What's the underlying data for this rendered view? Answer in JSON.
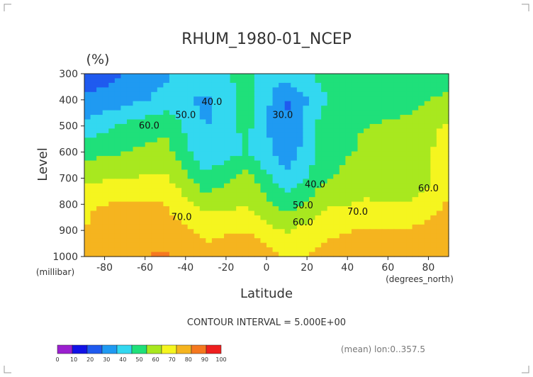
{
  "chart_data": {
    "type": "heatmap",
    "subtype": "filled-contour",
    "title": "RHUM_1980-01_NCEP",
    "unit_label": "(%)",
    "xlabel": "Latitude",
    "ylabel": "Level",
    "x_unit_label": "(degrees_north)",
    "y_unit_label": "(millibar)",
    "xlim": [
      -90,
      90
    ],
    "ylim": [
      1000,
      300
    ],
    "y_scale": "linear, inverted (pressure decreases upward)",
    "x_ticks": [
      -80,
      -60,
      -40,
      -20,
      0,
      20,
      40,
      60,
      80
    ],
    "y_ticks": [
      300,
      400,
      500,
      600,
      700,
      800,
      900,
      1000
    ],
    "contour_interval_text": "CONTOUR INTERVAL = 5.000E+00",
    "footer_note": "(mean) lon:0..357.5",
    "contour_labels": [
      {
        "text": "40.0",
        "lat": -27,
        "level": 420
      },
      {
        "text": "50.0",
        "lat": -40,
        "level": 470
      },
      {
        "text": "60.0",
        "lat": -58,
        "level": 510
      },
      {
        "text": "70.0",
        "lat": -42,
        "level": 860
      },
      {
        "text": "30.0",
        "lat": 8,
        "level": 470
      },
      {
        "text": "40.0",
        "lat": 24,
        "level": 735
      },
      {
        "text": "50.0",
        "lat": 18,
        "level": 815
      },
      {
        "text": "60.0",
        "lat": 18,
        "level": 880
      },
      {
        "text": "70.0",
        "lat": 45,
        "level": 840
      },
      {
        "text": "60.0",
        "lat": 80,
        "level": 750
      }
    ],
    "colorbar": {
      "ticks": [
        "0",
        "10",
        "20",
        "30",
        "40",
        "50",
        "60",
        "70",
        "80",
        "90",
        "100"
      ],
      "colors": [
        "#9b1fcf",
        "#1212e6",
        "#1f5aef",
        "#1f9af2",
        "#33d8f0",
        "#1fe07a",
        "#a8e81f",
        "#f5f51f",
        "#f5b41f",
        "#f5781f",
        "#ee1f1f"
      ]
    },
    "latitudes": [
      -90,
      -70,
      -50,
      -30,
      -10,
      10,
      30,
      50,
      70,
      90
    ],
    "levels": [
      300,
      400,
      500,
      600,
      700,
      800,
      900,
      1000
    ],
    "values": [
      [
        22,
        31,
        38,
        49,
        51,
        44,
        54,
        52,
        52,
        53
      ],
      [
        32,
        36,
        43,
        38,
        55,
        29,
        50,
        56,
        57,
        63
      ],
      [
        42,
        52,
        58,
        39,
        53,
        30,
        57,
        60,
        62,
        72
      ],
      [
        56,
        60,
        64,
        42,
        50,
        33,
        56,
        62,
        64,
        74
      ],
      [
        68,
        70,
        72,
        52,
        64,
        42,
        59,
        67,
        60,
        76
      ],
      [
        79,
        81,
        80,
        66,
        69,
        55,
        69,
        71,
        70,
        81
      ],
      [
        80,
        85,
        85,
        78,
        79,
        69,
        78,
        81,
        81,
        86
      ],
      [
        82,
        88,
        92,
        82,
        90,
        78,
        83,
        88,
        86,
        84
      ]
    ]
  }
}
